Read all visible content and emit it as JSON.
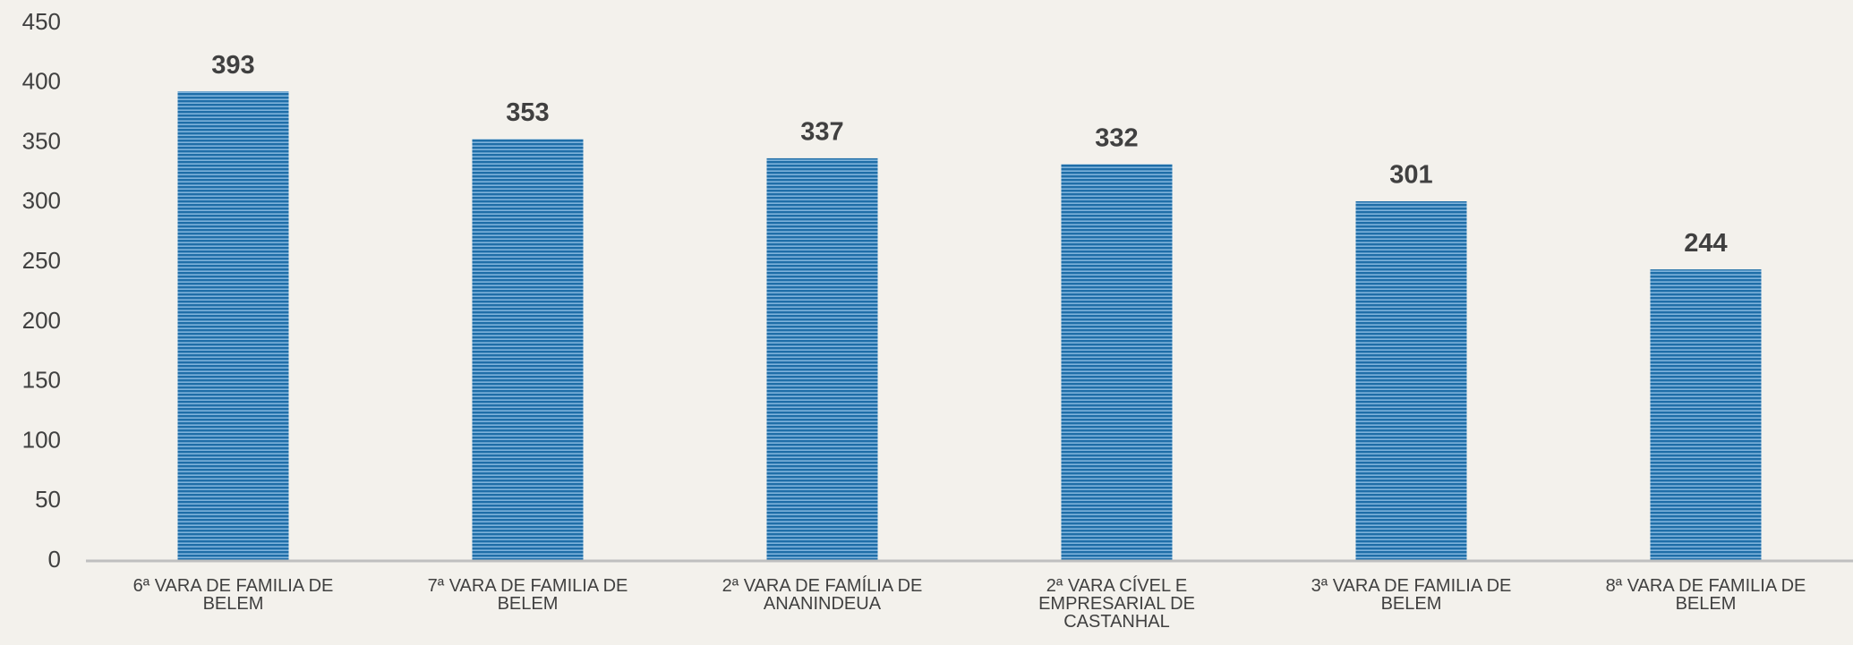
{
  "chart_data": {
    "type": "bar",
    "categories": [
      "6ª VARA DE FAMILIA DE BELEM",
      "7ª VARA DE FAMILIA DE BELEM",
      "2ª VARA DE FAMÍLIA DE ANANINDEUA",
      "2ª VARA CÍVEL E EMPRESARIAL DE CASTANHAL",
      "3ª VARA DE FAMILIA DE BELEM",
      "8ª VARA DE FAMILIA DE BELEM"
    ],
    "values": [
      393,
      353,
      337,
      332,
      301,
      244
    ],
    "color": "#1f6ea8",
    "ylim": [
      0,
      450
    ],
    "yticks": [
      0,
      50,
      100,
      150,
      200,
      250,
      300,
      350,
      400,
      450
    ],
    "grid": false
  }
}
